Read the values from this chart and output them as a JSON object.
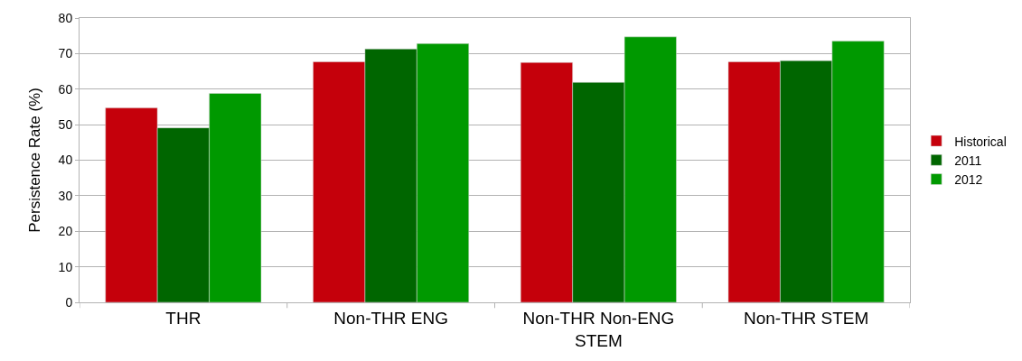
{
  "chart_data": {
    "type": "bar",
    "ylabel": "Persistence Rate (%)",
    "categories": [
      "THR",
      "Non-THR ENG",
      "Non-THR Non-ENG STEM",
      "Non-THR STEM"
    ],
    "series": [
      {
        "name": "Historical",
        "color": "#c5000b",
        "values": [
          54.7,
          67.7,
          67.5,
          67.7
        ]
      },
      {
        "name": "2011",
        "color": "#006600",
        "values": [
          49.1,
          71.3,
          61.9,
          68.0
        ]
      },
      {
        "name": "2012",
        "color": "#009900",
        "values": [
          58.8,
          72.8,
          74.7,
          73.5
        ]
      }
    ],
    "ylim": [
      0,
      80
    ],
    "yticks": [
      0,
      10,
      20,
      30,
      40,
      50,
      60,
      70,
      80
    ],
    "grid": "y",
    "legend": "right"
  }
}
